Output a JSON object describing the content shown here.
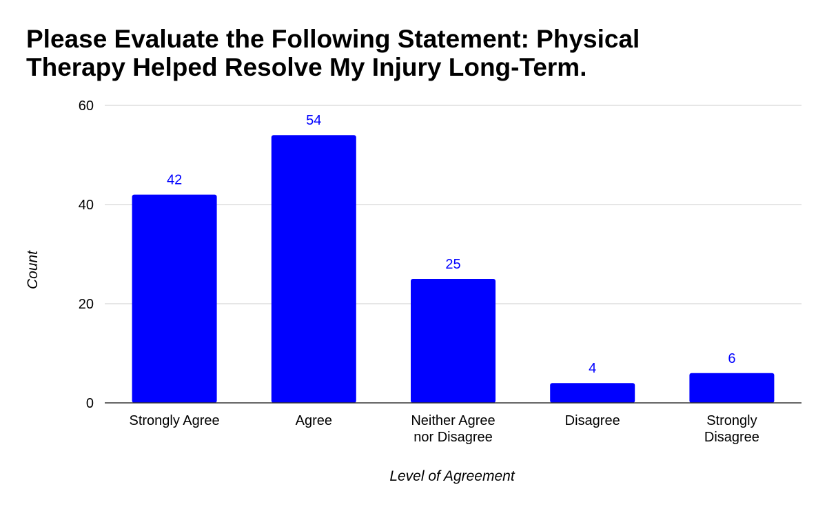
{
  "chart_data": {
    "type": "bar",
    "title_lines": [
      "Please Evaluate the Following Statement: Physical",
      "Therapy Helped Resolve My Injury Long-Term."
    ],
    "xlabel": "Level of Agreement",
    "ylabel": "Count",
    "categories": [
      [
        "Strongly Agree"
      ],
      [
        "Agree"
      ],
      [
        "Neither Agree",
        "nor Disagree"
      ],
      [
        "Disagree"
      ],
      [
        "Strongly",
        "Disagree"
      ]
    ],
    "values": [
      42,
      54,
      25,
      4,
      6
    ],
    "data_labels": [
      "42",
      "54",
      "25",
      "4",
      "6"
    ],
    "ylim": [
      0,
      60
    ],
    "yticks": [
      0,
      20,
      40,
      60
    ],
    "grid": true,
    "bar_color": "#0000ff",
    "label_color": "#0000ff",
    "gridline_color": "#cccccc",
    "axis_color": "#333333"
  }
}
